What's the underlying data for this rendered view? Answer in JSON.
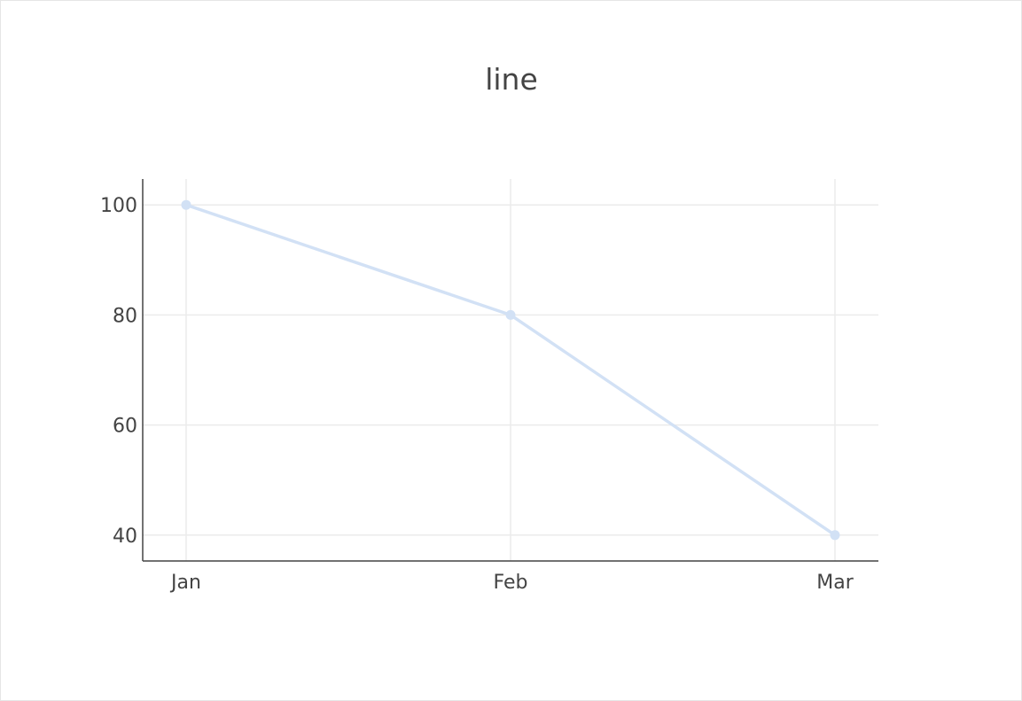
{
  "chart_data": {
    "type": "line",
    "title": "line",
    "xlabel": "",
    "ylabel": "",
    "categories": [
      "Jan",
      "Feb",
      "Mar"
    ],
    "series": [
      {
        "values": [
          100,
          80,
          40
        ],
        "color": "#d2e1f5",
        "mode": "lines+markers"
      }
    ],
    "ylim": [
      35.3,
      104.7
    ],
    "yticks": [
      40,
      60,
      80,
      100
    ],
    "grid": true,
    "legend": "none"
  }
}
